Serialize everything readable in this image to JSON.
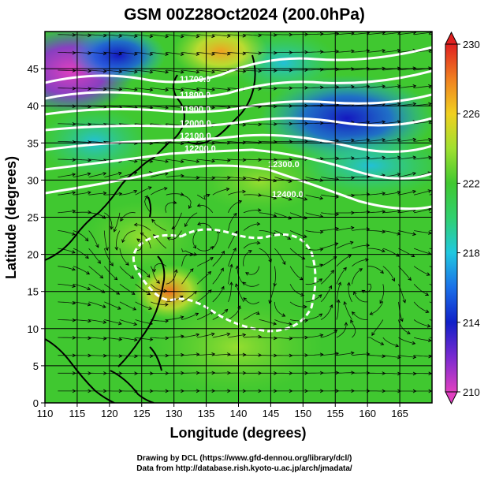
{
  "title": "GSM 00Z28Oct2024 (200.0hPa)",
  "xlabel": "Longitude (degrees)",
  "ylabel": "Latitude  (degrees)",
  "x_ticks": [
    "110",
    "115",
    "120",
    "125",
    "130",
    "135",
    "140",
    "145",
    "150",
    "155",
    "160",
    "165"
  ],
  "y_ticks": [
    "0",
    "5",
    "10",
    "15",
    "20",
    "25",
    "30",
    "35",
    "40",
    "45"
  ],
  "xlim": [
    110,
    170
  ],
  "ylim": [
    0,
    50
  ],
  "colorbar": {
    "ticks": [
      "210",
      "214",
      "218",
      "222",
      "226",
      "230"
    ],
    "min": 210,
    "max": 230,
    "colors": [
      "#e040c0",
      "#7a2ad0",
      "#1020c8",
      "#1a70e8",
      "#20c8e0",
      "#30d070",
      "#40c830",
      "#a0e030",
      "#f0d020",
      "#f08020",
      "#e02020"
    ]
  },
  "contour_labels": [
    "11700.0",
    "11800.0",
    "11900.0",
    "12000.0",
    "12100.0",
    "12200.0",
    "12300.0",
    "12400.0"
  ],
  "colors": {
    "land_outline": "#000000",
    "contour": "#ffffff",
    "streamline": "#000000",
    "grid": "#000000"
  },
  "credits": [
    "Drawing by DCL (https://www.gfd-dennou.org/library/dcl/)",
    "Data from http://database.rish.kyoto-u.ac.jp/arch/jmadata/"
  ]
}
